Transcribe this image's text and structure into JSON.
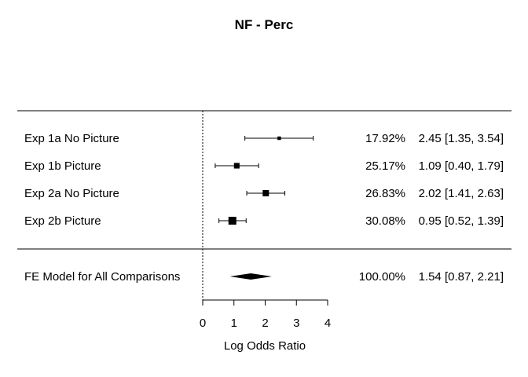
{
  "chart_data": {
    "type": "forest",
    "title": "NF - Perc",
    "xlabel": "Log Odds Ratio",
    "xlim": [
      0,
      4
    ],
    "xticks": [
      0,
      1,
      2,
      3,
      4
    ],
    "tick_labels": [
      "0",
      "1",
      "2",
      "3",
      "4"
    ],
    "reference_line": 0,
    "studies": [
      {
        "label": "Exp 1a No Picture",
        "estimate": 2.45,
        "ci_lower": 1.35,
        "ci_upper": 3.54,
        "weight": 17.92,
        "weight_text": "17.92%",
        "ci_text": "2.45 [1.35, 3.54]"
      },
      {
        "label": "Exp 1b Picture",
        "estimate": 1.09,
        "ci_lower": 0.4,
        "ci_upper": 1.79,
        "weight": 25.17,
        "weight_text": "25.17%",
        "ci_text": "1.09 [0.40, 1.79]"
      },
      {
        "label": "Exp 2a No Picture",
        "estimate": 2.02,
        "ci_lower": 1.41,
        "ci_upper": 2.63,
        "weight": 26.83,
        "weight_text": "26.83%",
        "ci_text": "2.02 [1.41, 2.63]"
      },
      {
        "label": "Exp 2b Picture",
        "estimate": 0.95,
        "ci_lower": 0.52,
        "ci_upper": 1.39,
        "weight": 30.08,
        "weight_text": "30.08%",
        "ci_text": "0.95 [0.52, 1.39]"
      }
    ],
    "summary": {
      "label": "FE Model for All Comparisons",
      "estimate": 1.54,
      "ci_lower": 0.87,
      "ci_upper": 2.21,
      "weight_text": "100.00%",
      "ci_text": "1.54 [0.87, 2.21]"
    }
  }
}
